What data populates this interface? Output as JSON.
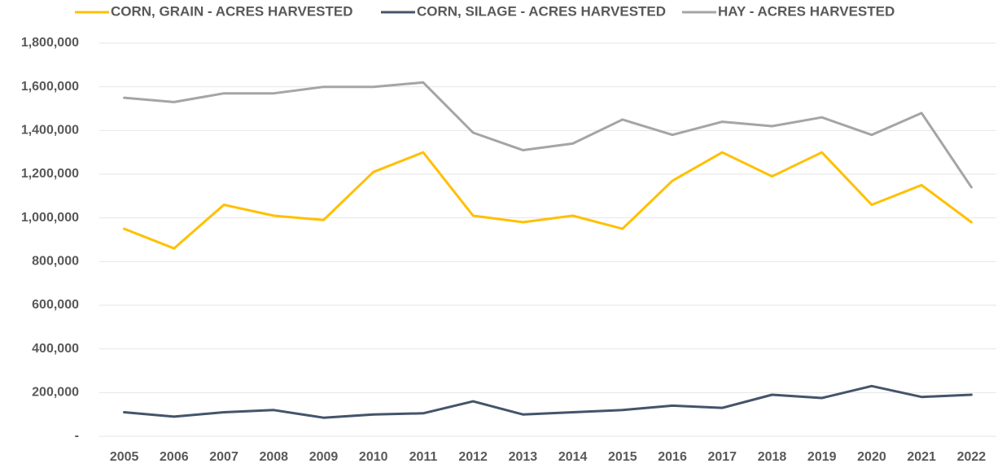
{
  "chart_data": {
    "type": "line",
    "categories": [
      "2005",
      "2006",
      "2007",
      "2008",
      "2009",
      "2010",
      "2011",
      "2012",
      "2013",
      "2014",
      "2015",
      "2016",
      "2017",
      "2018",
      "2019",
      "2020",
      "2021",
      "2022"
    ],
    "series": [
      {
        "name": "CORN, GRAIN - ACRES HARVESTED",
        "color": "#ffc000",
        "values": [
          950000,
          860000,
          1060000,
          1010000,
          990000,
          1210000,
          1300000,
          1010000,
          980000,
          1010000,
          950000,
          1170000,
          1300000,
          1190000,
          1300000,
          1060000,
          1150000,
          980000
        ]
      },
      {
        "name": "CORN, SILAGE - ACRES HARVESTED",
        "color": "#44546a",
        "values": [
          110000,
          90000,
          110000,
          120000,
          85000,
          100000,
          105000,
          160000,
          100000,
          110000,
          120000,
          140000,
          130000,
          190000,
          175000,
          230000,
          180000,
          190000
        ]
      },
      {
        "name": "HAY - ACRES HARVESTED",
        "color": "#a5a5a5",
        "values": [
          1550000,
          1530000,
          1570000,
          1570000,
          1600000,
          1600000,
          1620000,
          1390000,
          1310000,
          1340000,
          1450000,
          1380000,
          1440000,
          1420000,
          1460000,
          1380000,
          1480000,
          1140000
        ]
      }
    ],
    "ylim": [
      0,
      1800000
    ],
    "yticks": [
      {
        "value": 0,
        "label": "-"
      },
      {
        "value": 200000,
        "label": "200,000"
      },
      {
        "value": 400000,
        "label": "400,000"
      },
      {
        "value": 600000,
        "label": "600,000"
      },
      {
        "value": 800000,
        "label": "800,000"
      },
      {
        "value": 1000000,
        "label": "1,000,000"
      },
      {
        "value": 1200000,
        "label": "1,200,000"
      },
      {
        "value": 1400000,
        "label": "1,400,000"
      },
      {
        "value": 1600000,
        "label": "1,600,000"
      },
      {
        "value": 1800000,
        "label": "1,800,000"
      }
    ],
    "grid": true,
    "legend": "top"
  }
}
